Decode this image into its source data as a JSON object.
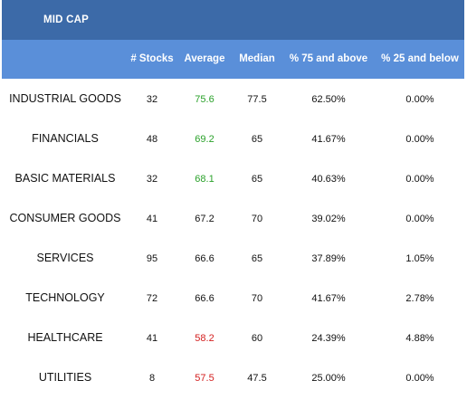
{
  "table": {
    "title": "MID CAP",
    "columns": [
      "# Stocks",
      "Average",
      "Median",
      "% 75 and above",
      "% 25 and below"
    ],
    "colors": {
      "title_bg": "#3c6aa8",
      "header_bg": "#5a8fd9",
      "above_average": "#2aa12a",
      "below_average": "#d42020"
    },
    "rows": [
      {
        "sector": "INDUSTRIAL GOODS",
        "stocks": "32",
        "average": "75.6",
        "average_status": "green",
        "median": "77.5",
        "above75": "62.50%",
        "below25": "0.00%"
      },
      {
        "sector": "FINANCIALS",
        "stocks": "48",
        "average": "69.2",
        "average_status": "green",
        "median": "65",
        "above75": "41.67%",
        "below25": "0.00%"
      },
      {
        "sector": "BASIC MATERIALS",
        "stocks": "32",
        "average": "68.1",
        "average_status": "green",
        "median": "65",
        "above75": "40.63%",
        "below25": "0.00%"
      },
      {
        "sector": "CONSUMER GOODS",
        "stocks": "41",
        "average": "67.2",
        "average_status": "neutral",
        "median": "70",
        "above75": "39.02%",
        "below25": "0.00%"
      },
      {
        "sector": "SERVICES",
        "stocks": "95",
        "average": "66.6",
        "average_status": "neutral",
        "median": "65",
        "above75": "37.89%",
        "below25": "1.05%"
      },
      {
        "sector": "TECHNOLOGY",
        "stocks": "72",
        "average": "66.6",
        "average_status": "neutral",
        "median": "70",
        "above75": "41.67%",
        "below25": "2.78%"
      },
      {
        "sector": "HEALTHCARE",
        "stocks": "41",
        "average": "58.2",
        "average_status": "red",
        "median": "60",
        "above75": "24.39%",
        "below25": "4.88%"
      },
      {
        "sector": "UTILITIES",
        "stocks": "8",
        "average": "57.5",
        "average_status": "red",
        "median": "47.5",
        "above75": "25.00%",
        "below25": "0.00%"
      }
    ]
  }
}
